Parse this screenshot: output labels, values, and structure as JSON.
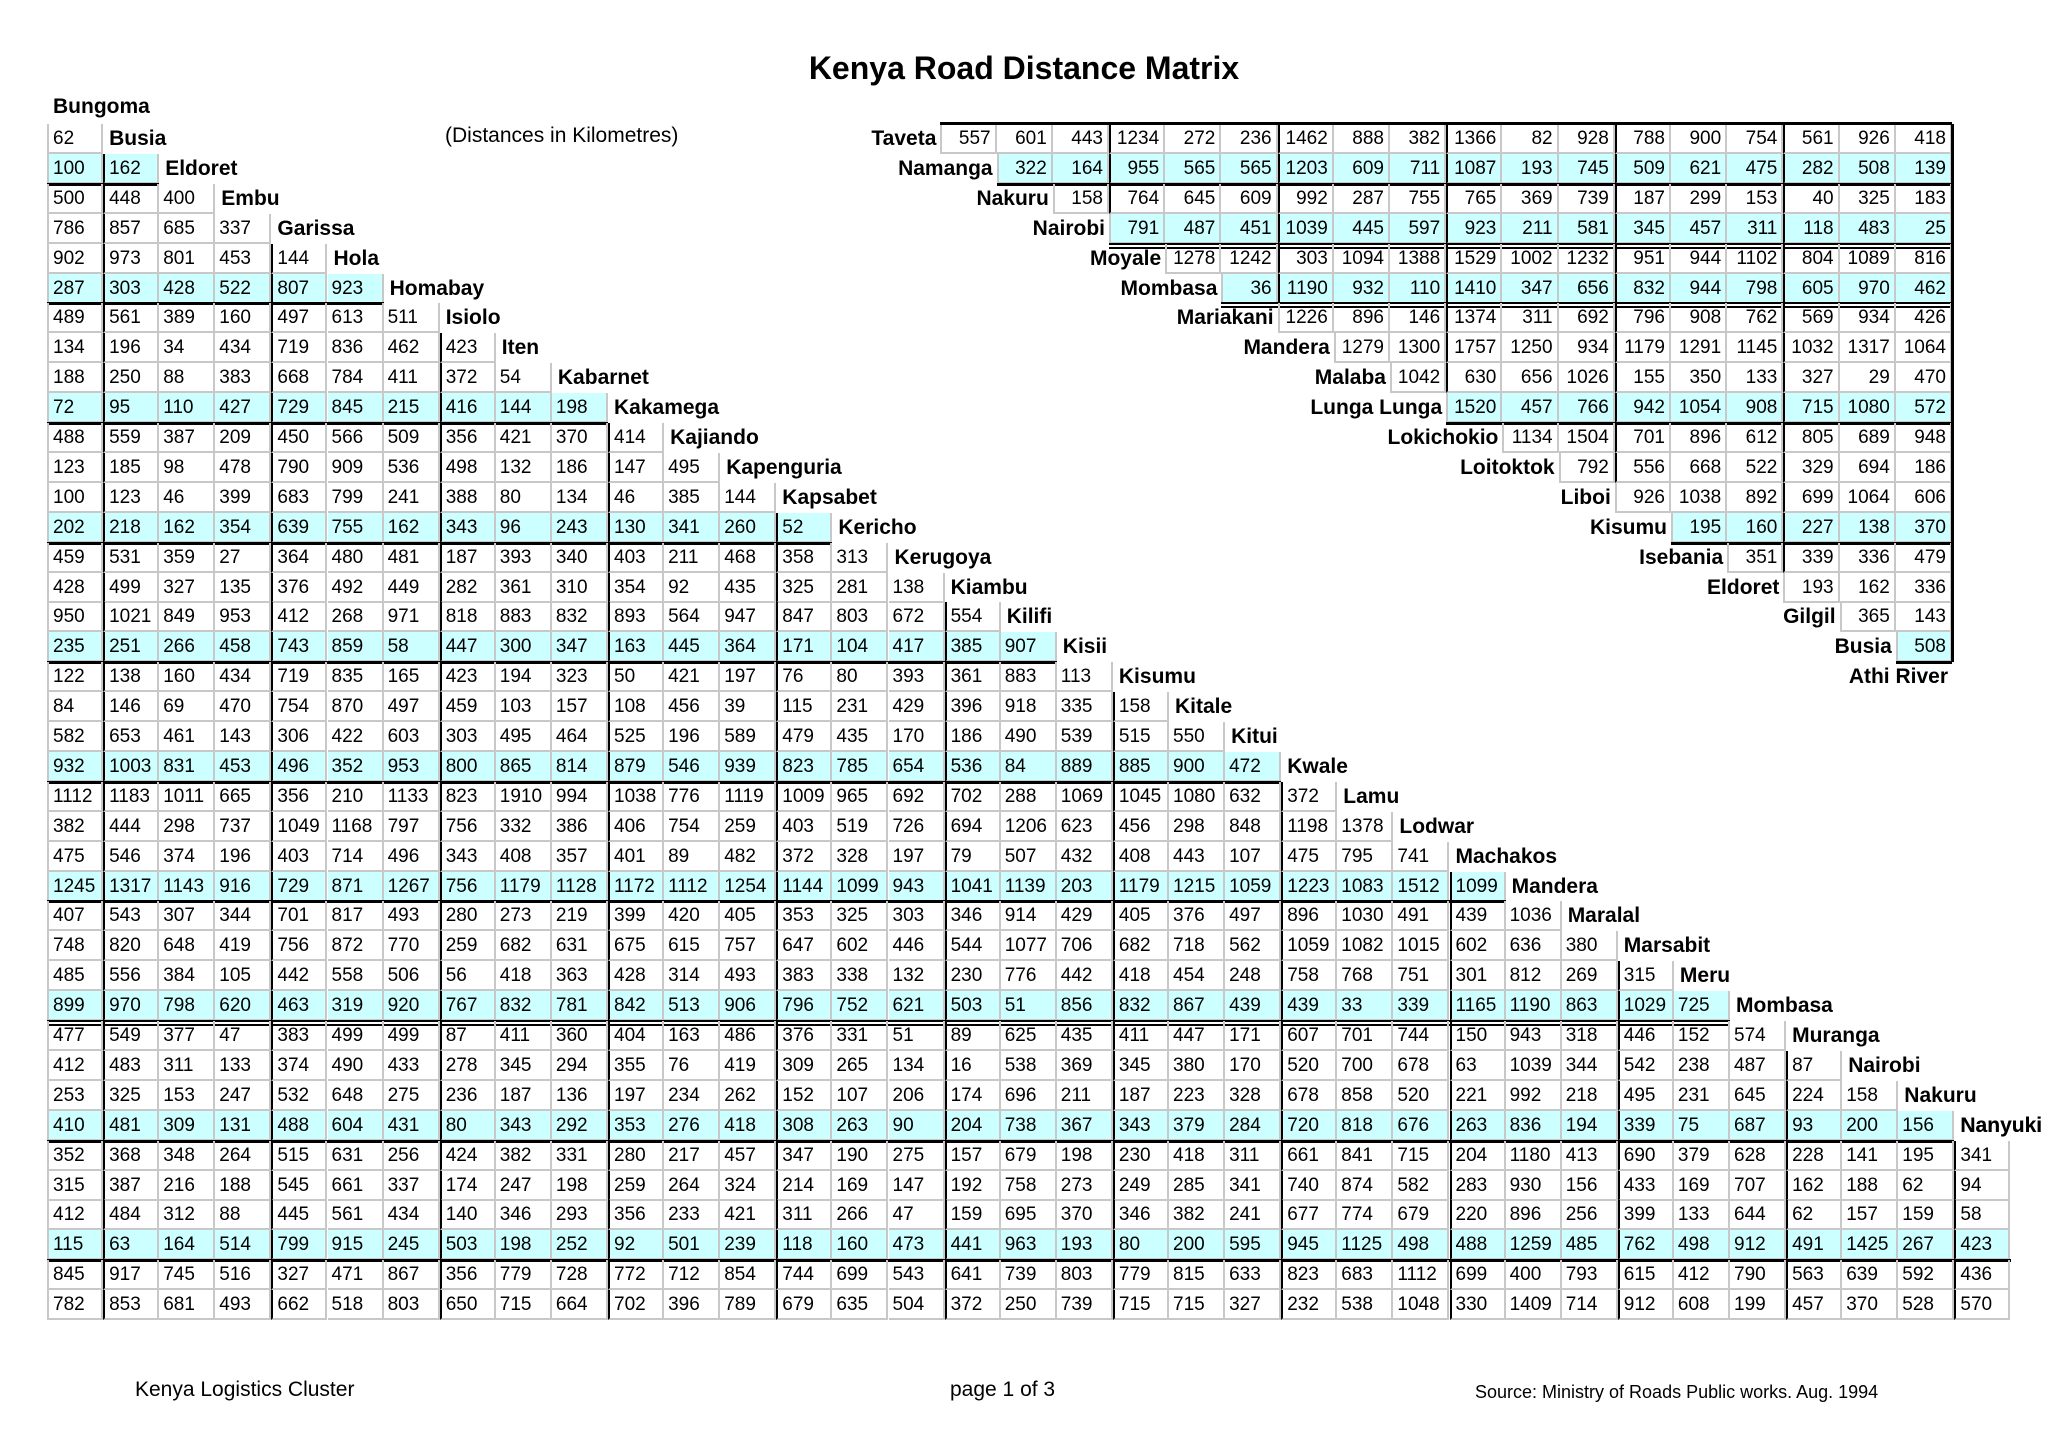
{
  "title": "Kenya Road Distance Matrix",
  "subtitle": "(Distances in Kilometres)",
  "footer": {
    "left": "Kenya Logistics Cluster",
    "center": "page 1 of 3",
    "right": "Source:  Ministry of Roads Public works. Aug. 1994"
  },
  "colors": {
    "shaded_row": "#ccffff",
    "grid": "#c8c8c8",
    "rule": "#000000"
  },
  "left_matrix": {
    "towns": [
      "Bungoma",
      "Busia",
      "Eldoret",
      "Embu",
      "Garissa",
      "Hola",
      "Homabay",
      "Isiolo",
      "Iten",
      "Kabarnet",
      "Kakamega",
      "Kajiando",
      "Kapenguria",
      "Kapsabet",
      "Kericho",
      "Kerugoya",
      "Kiambu",
      "Kilifi",
      "Kisii",
      "Kisumu",
      "Kitale",
      "Kitui",
      "Kwale",
      "Lamu",
      "Lodwar",
      "Machakos",
      "Mandera",
      "Maralal",
      "Marsabit",
      "Meru",
      "Mombasa",
      "Muranga",
      "Nairobi",
      "Nakuru",
      "Nanyuki"
    ],
    "rows": [
      {
        "values": [
          62
        ]
      },
      {
        "values": [
          100,
          162
        ]
      },
      {
        "values": [
          500,
          448,
          400
        ]
      },
      {
        "values": [
          786,
          857,
          685,
          337
        ]
      },
      {
        "values": [
          902,
          973,
          801,
          453,
          144
        ]
      },
      {
        "values": [
          287,
          303,
          428,
          522,
          807,
          923
        ]
      },
      {
        "values": [
          489,
          561,
          389,
          160,
          497,
          613,
          511
        ]
      },
      {
        "values": [
          134,
          196,
          34,
          434,
          719,
          836,
          462,
          423
        ]
      },
      {
        "values": [
          188,
          250,
          88,
          383,
          668,
          784,
          411,
          372,
          54
        ]
      },
      {
        "values": [
          72,
          95,
          110,
          427,
          729,
          845,
          215,
          416,
          144,
          198
        ]
      },
      {
        "values": [
          488,
          559,
          387,
          209,
          450,
          566,
          509,
          356,
          421,
          370,
          414
        ]
      },
      {
        "values": [
          123,
          185,
          98,
          478,
          790,
          909,
          536,
          498,
          132,
          186,
          147,
          495
        ]
      },
      {
        "values": [
          100,
          123,
          46,
          399,
          683,
          799,
          241,
          388,
          80,
          134,
          46,
          385,
          144
        ]
      },
      {
        "values": [
          202,
          218,
          162,
          354,
          639,
          755,
          162,
          343,
          96,
          243,
          130,
          341,
          260,
          52
        ]
      },
      {
        "values": [
          459,
          531,
          359,
          27,
          364,
          480,
          481,
          187,
          393,
          340,
          403,
          211,
          468,
          358,
          313
        ]
      },
      {
        "values": [
          428,
          499,
          327,
          135,
          376,
          492,
          449,
          282,
          361,
          310,
          354,
          92,
          435,
          325,
          281,
          138
        ]
      },
      {
        "values": [
          950,
          1021,
          849,
          953,
          412,
          268,
          971,
          818,
          883,
          832,
          893,
          564,
          947,
          847,
          803,
          672,
          554
        ]
      },
      {
        "values": [
          235,
          251,
          266,
          458,
          743,
          859,
          58,
          447,
          300,
          347,
          163,
          445,
          364,
          171,
          104,
          417,
          385,
          907
        ]
      },
      {
        "values": [
          122,
          138,
          160,
          434,
          719,
          835,
          165,
          423,
          194,
          323,
          50,
          421,
          197,
          76,
          80,
          393,
          361,
          883,
          113
        ]
      },
      {
        "values": [
          84,
          146,
          69,
          470,
          754,
          870,
          497,
          459,
          103,
          157,
          108,
          456,
          39,
          115,
          231,
          429,
          396,
          918,
          335,
          158
        ]
      },
      {
        "values": [
          582,
          653,
          461,
          143,
          306,
          422,
          603,
          303,
          495,
          464,
          525,
          196,
          589,
          479,
          435,
          170,
          186,
          490,
          539,
          515,
          550
        ]
      },
      {
        "values": [
          932,
          1003,
          831,
          453,
          496,
          352,
          953,
          800,
          865,
          814,
          879,
          546,
          939,
          823,
          785,
          654,
          536,
          84,
          889,
          885,
          900,
          472
        ]
      },
      {
        "values": [
          1112,
          1183,
          1011,
          665,
          356,
          210,
          1133,
          823,
          1910,
          994,
          1038,
          776,
          1119,
          1009,
          965,
          692,
          702,
          288,
          1069,
          1045,
          1080,
          632,
          372
        ]
      },
      {
        "values": [
          382,
          444,
          298,
          737,
          1049,
          1168,
          797,
          756,
          332,
          386,
          406,
          754,
          259,
          403,
          519,
          726,
          694,
          1206,
          623,
          456,
          298,
          848,
          1198,
          1378
        ]
      },
      {
        "values": [
          475,
          546,
          374,
          196,
          403,
          714,
          496,
          343,
          408,
          357,
          401,
          89,
          482,
          372,
          328,
          197,
          79,
          507,
          432,
          408,
          443,
          107,
          475,
          795,
          741
        ]
      },
      {
        "values": [
          1245,
          1317,
          1143,
          916,
          729,
          871,
          1267,
          756,
          1179,
          1128,
          1172,
          1112,
          1254,
          1144,
          1099,
          943,
          1041,
          1139,
          203,
          1179,
          1215,
          1059,
          1223,
          1083,
          1512,
          1099
        ]
      },
      {
        "values": [
          407,
          543,
          307,
          344,
          701,
          817,
          493,
          280,
          273,
          219,
          399,
          420,
          405,
          353,
          325,
          303,
          346,
          914,
          429,
          405,
          376,
          497,
          896,
          1030,
          491,
          439,
          1036
        ]
      },
      {
        "values": [
          748,
          820,
          648,
          419,
          756,
          872,
          770,
          259,
          682,
          631,
          675,
          615,
          757,
          647,
          602,
          446,
          544,
          1077,
          706,
          682,
          718,
          562,
          1059,
          1082,
          1015,
          602,
          636,
          380
        ]
      },
      {
        "values": [
          485,
          556,
          384,
          105,
          442,
          558,
          506,
          56,
          418,
          363,
          428,
          314,
          493,
          383,
          338,
          132,
          230,
          776,
          442,
          418,
          454,
          248,
          758,
          768,
          751,
          301,
          812,
          269,
          315
        ]
      },
      {
        "values": [
          899,
          970,
          798,
          620,
          463,
          319,
          920,
          767,
          832,
          781,
          842,
          513,
          906,
          796,
          752,
          621,
          503,
          51,
          856,
          832,
          867,
          439,
          439,
          33,
          339,
          1165,
          1190,
          863,
          1029,
          725
        ]
      },
      {
        "values": [
          477,
          549,
          377,
          47,
          383,
          499,
          499,
          87,
          411,
          360,
          404,
          163,
          486,
          376,
          331,
          51,
          89,
          625,
          435,
          411,
          447,
          171,
          607,
          701,
          744,
          150,
          943,
          318,
          446,
          152,
          574
        ]
      },
      {
        "values": [
          412,
          483,
          311,
          133,
          374,
          490,
          433,
          278,
          345,
          294,
          355,
          76,
          419,
          309,
          265,
          134,
          16,
          538,
          369,
          345,
          380,
          170,
          520,
          700,
          678,
          63,
          1039,
          344,
          542,
          238,
          487,
          87
        ]
      },
      {
        "values": [
          253,
          325,
          153,
          247,
          532,
          648,
          275,
          236,
          187,
          136,
          197,
          234,
          262,
          152,
          107,
          206,
          174,
          696,
          211,
          187,
          223,
          328,
          678,
          858,
          520,
          221,
          992,
          218,
          495,
          231,
          645,
          224,
          158
        ]
      },
      {
        "values": [
          410,
          481,
          309,
          131,
          488,
          604,
          431,
          80,
          343,
          292,
          353,
          276,
          418,
          308,
          263,
          90,
          204,
          738,
          367,
          343,
          379,
          284,
          720,
          818,
          676,
          263,
          836,
          194,
          339,
          75,
          687,
          93,
          200,
          156
        ]
      },
      {
        "values": [
          352,
          368,
          348,
          264,
          515,
          631,
          256,
          424,
          382,
          331,
          280,
          217,
          457,
          347,
          190,
          275,
          157,
          679,
          198,
          230,
          418,
          311,
          661,
          841,
          715,
          204,
          1180,
          413,
          690,
          379,
          628,
          228,
          141,
          195,
          341
        ]
      },
      {
        "values": [
          315,
          387,
          216,
          188,
          545,
          661,
          337,
          174,
          247,
          198,
          259,
          264,
          324,
          214,
          169,
          147,
          192,
          758,
          273,
          249,
          285,
          341,
          740,
          874,
          582,
          283,
          930,
          156,
          433,
          169,
          707,
          162,
          188,
          62,
          94
        ]
      },
      {
        "values": [
          412,
          484,
          312,
          88,
          445,
          561,
          434,
          140,
          346,
          293,
          356,
          233,
          421,
          311,
          266,
          47,
          159,
          695,
          370,
          346,
          382,
          241,
          677,
          774,
          679,
          220,
          896,
          256,
          399,
          133,
          644,
          62,
          157,
          159,
          58
        ]
      },
      {
        "values": [
          115,
          63,
          164,
          514,
          799,
          915,
          245,
          503,
          198,
          252,
          92,
          501,
          239,
          118,
          160,
          473,
          441,
          963,
          193,
          80,
          200,
          595,
          945,
          1125,
          498,
          488,
          1259,
          485,
          762,
          498,
          912,
          491,
          1425,
          267,
          423
        ]
      },
      {
        "values": [
          845,
          917,
          745,
          516,
          327,
          471,
          867,
          356,
          779,
          728,
          772,
          712,
          854,
          744,
          699,
          543,
          641,
          739,
          803,
          779,
          815,
          633,
          823,
          683,
          1112,
          699,
          400,
          793,
          615,
          412,
          790,
          563,
          639,
          592,
          436
        ]
      },
      {
        "values": [
          782,
          853,
          681,
          493,
          662,
          518,
          803,
          650,
          715,
          664,
          702,
          396,
          789,
          679,
          635,
          504,
          372,
          250,
          739,
          715,
          715,
          327,
          232,
          538,
          1048,
          330,
          1409,
          714,
          912,
          608,
          199,
          457,
          370,
          528,
          570
        ]
      }
    ]
  },
  "right_matrix": {
    "rows": [
      {
        "town": "Taveta",
        "values": [
          557,
          601,
          443,
          1234,
          272,
          236,
          1462,
          888,
          382,
          1366,
          82,
          928,
          788,
          900,
          754,
          561,
          926,
          418
        ]
      },
      {
        "town": "Namanga",
        "values": [
          322,
          164,
          955,
          565,
          565,
          1203,
          609,
          711,
          1087,
          193,
          745,
          509,
          621,
          475,
          282,
          508,
          139
        ]
      },
      {
        "town": "Nakuru",
        "values": [
          158,
          764,
          645,
          609,
          992,
          287,
          755,
          765,
          369,
          739,
          187,
          299,
          153,
          40,
          325,
          183
        ]
      },
      {
        "town": "Nairobi",
        "values": [
          791,
          487,
          451,
          1039,
          445,
          597,
          923,
          211,
          581,
          345,
          457,
          311,
          118,
          483,
          25
        ]
      },
      {
        "town": "Moyale",
        "values": [
          1278,
          1242,
          303,
          1094,
          1388,
          1529,
          1002,
          1232,
          951,
          944,
          1102,
          804,
          1089,
          816
        ]
      },
      {
        "town": "Mombasa",
        "values": [
          36,
          1190,
          932,
          110,
          1410,
          347,
          656,
          832,
          944,
          798,
          605,
          970,
          462
        ]
      },
      {
        "town": "Mariakani",
        "values": [
          1226,
          896,
          146,
          1374,
          311,
          692,
          796,
          908,
          762,
          569,
          934,
          426
        ]
      },
      {
        "town": "Mandera",
        "values": [
          1279,
          1300,
          1757,
          1250,
          934,
          1179,
          1291,
          1145,
          1032,
          1317,
          1064
        ]
      },
      {
        "town": "Malaba",
        "values": [
          1042,
          630,
          656,
          1026,
          155,
          350,
          133,
          327,
          29,
          470
        ]
      },
      {
        "town": "Lunga Lunga",
        "values": [
          1520,
          457,
          766,
          942,
          1054,
          908,
          715,
          1080,
          572
        ]
      },
      {
        "town": "Lokichokio",
        "values": [
          1134,
          1504,
          701,
          896,
          612,
          805,
          689,
          948
        ]
      },
      {
        "town": "Loitoktok",
        "values": [
          792,
          556,
          668,
          522,
          329,
          694,
          186
        ]
      },
      {
        "town": "Liboi",
        "values": [
          926,
          1038,
          892,
          699,
          1064,
          606
        ]
      },
      {
        "town": "Kisumu",
        "values": [
          195,
          160,
          227,
          138,
          370
        ]
      },
      {
        "town": "Isebania",
        "values": [
          351,
          339,
          336,
          479
        ]
      },
      {
        "town": "Eldoret",
        "values": [
          193,
          162,
          336
        ]
      },
      {
        "town": "Gilgil",
        "values": [
          365,
          143
        ]
      },
      {
        "town": "Busia",
        "values": [
          508
        ]
      },
      {
        "town": "Athi River",
        "values": []
      }
    ]
  }
}
